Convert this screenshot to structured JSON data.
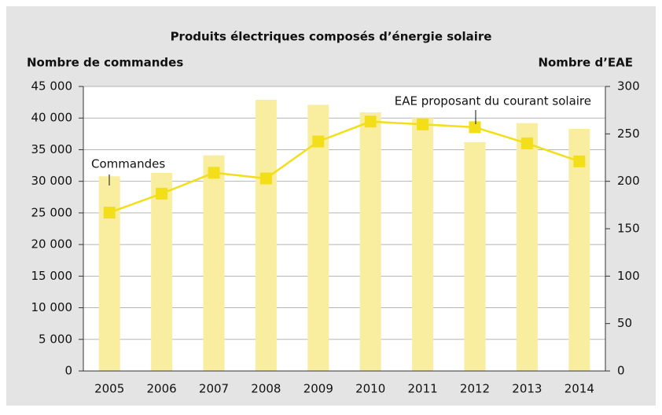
{
  "chart_data": {
    "type": "bar_line",
    "title": "Produits électriques composés d’énergie solaire",
    "y_label": "Nombre de commandes",
    "y2_label": "Nombre d’EAE",
    "categories": [
      "2005",
      "2006",
      "2007",
      "2008",
      "2009",
      "2010",
      "2011",
      "2012",
      "2013",
      "2014"
    ],
    "series": [
      {
        "name": "Commandes",
        "type": "bar",
        "color": "#f9eea0",
        "values": [
          30800,
          32000,
          34100,
          42900,
          42100,
          40900,
          40000,
          36200,
          39200,
          38300
        ]
      },
      {
        "name": "EAE proposant du courant solaire",
        "type": "line",
        "axis": "y2",
        "color": "#f2df1a",
        "values": [
          167,
          187,
          209,
          203,
          242,
          263,
          260,
          257,
          240,
          221
        ]
      }
    ],
    "ylim": [
      0,
      45000
    ],
    "yticks": [
      0,
      {
        "value": 5000,
        "label": "5 000"
      },
      {
        "value": 10000,
        "label": "10 000"
      },
      {
        "value": 15000,
        "label": "15 000"
      },
      {
        "value": 20000,
        "label": "20 000"
      },
      {
        "value": 25000,
        "label": "25 000"
      },
      {
        "value": 30000,
        "label": "30 000"
      },
      {
        "value": 35000,
        "label": "35 000"
      },
      {
        "value": 40000,
        "label": "40 000"
      },
      {
        "value": 45000,
        "label": "45 000"
      }
    ],
    "y2lim": [
      0,
      300
    ],
    "y2ticks": [
      0,
      50,
      100,
      150,
      200,
      250,
      300
    ],
    "grid": true
  }
}
